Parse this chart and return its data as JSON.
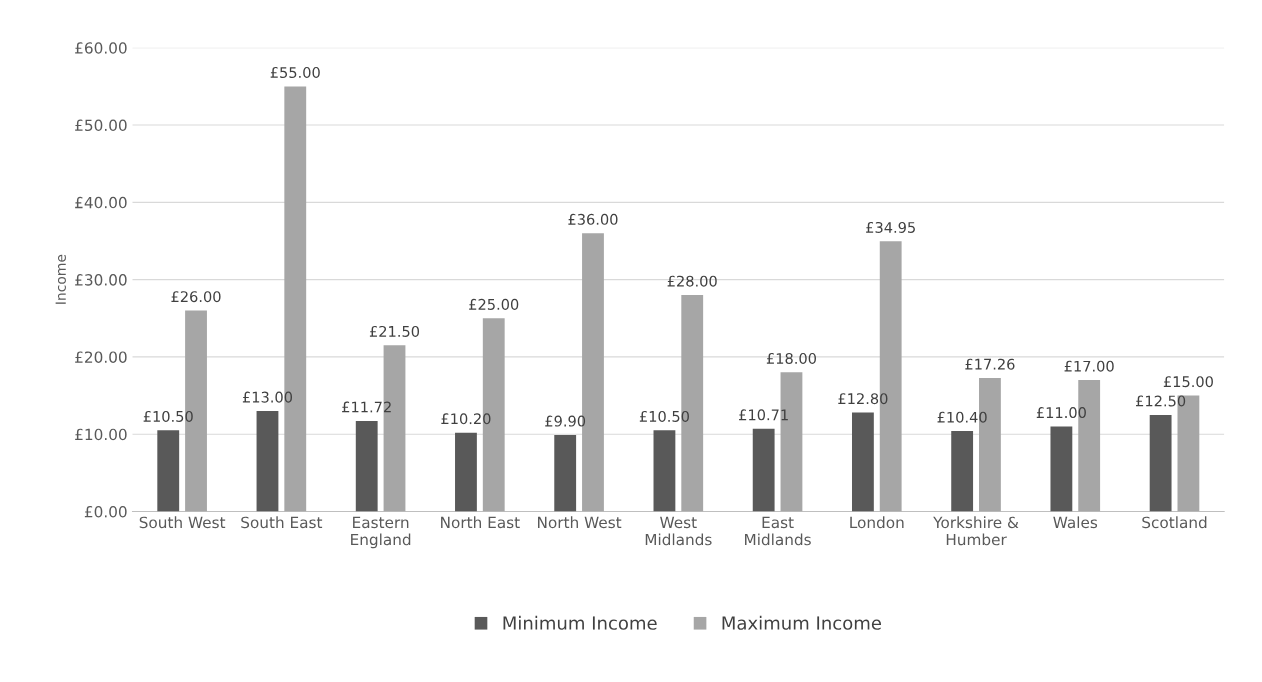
{
  "chart_data": {
    "type": "bar",
    "ylabel": "Income",
    "categories": [
      "South West",
      "South East",
      "Eastern\nEngland",
      "North East",
      "North West",
      "West\nMidlands",
      "East\nMidlands",
      "London",
      "Yorkshire &\nHumber",
      "Wales",
      "Scotland"
    ],
    "series": [
      {
        "name": "Minimum Income",
        "color": "#595959",
        "values": [
          10.5,
          13.0,
          11.72,
          10.2,
          9.9,
          10.5,
          10.71,
          12.8,
          10.4,
          11.0,
          12.5
        ],
        "value_labels": [
          "£10.50",
          "£13.00",
          "£11.72",
          "£10.20",
          "£9.90",
          "£10.50",
          "£10.71",
          "£12.80",
          "£10.40",
          "£11.00",
          "£12.50"
        ]
      },
      {
        "name": "Maximum Income",
        "color": "#a6a6a6",
        "values": [
          26.0,
          55.0,
          21.5,
          25.0,
          36.0,
          28.0,
          18.0,
          34.95,
          17.26,
          17.0,
          15.0
        ],
        "value_labels": [
          "£26.00",
          "£55.00",
          "£21.50",
          "£25.00",
          "£36.00",
          "£28.00",
          "£18.00",
          "£34.95",
          "£17.26",
          "£17.00",
          "£15.00"
        ]
      }
    ],
    "ylim": [
      0,
      60
    ],
    "yticks": [
      {
        "value": 0,
        "label": "£0.00"
      },
      {
        "value": 10,
        "label": "£10.00"
      },
      {
        "value": 20,
        "label": "£20.00"
      },
      {
        "value": 30,
        "label": "£30.00"
      },
      {
        "value": 40,
        "label": "£40.00"
      },
      {
        "value": 50,
        "label": "£50.00"
      },
      {
        "value": 60,
        "label": "£60.00"
      }
    ],
    "grid": "y",
    "legend": "bottom"
  }
}
